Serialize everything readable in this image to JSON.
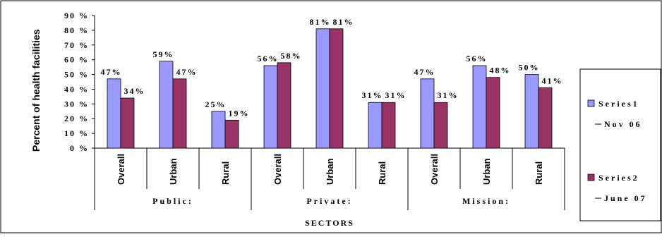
{
  "chart_data": {
    "type": "bar",
    "title": "",
    "ylabel": "Percent of health facilities",
    "xlabel": "SECTORS",
    "ylim": [
      0,
      90
    ],
    "yticks": [
      "0 %",
      "10 %",
      "20 %",
      "30 %",
      "40 %",
      "50 %",
      "60 %",
      "70 %",
      "80 %",
      "90 %"
    ],
    "categories": [
      "Overall",
      "Urban",
      "Rural",
      "Overall",
      "Urban",
      "Rural",
      "Overall",
      "Urban",
      "Rural"
    ],
    "groups": [
      "Public:",
      "Private:",
      "Mission:"
    ],
    "series": [
      {
        "name": "Series1",
        "subtitle": "Nov 06",
        "color": "#9999ff",
        "values": [
          47,
          59,
          25,
          56,
          81,
          31,
          47,
          56,
          50
        ],
        "labels": [
          "47%",
          "59%",
          "25%",
          "56%",
          "81%",
          "31%",
          "47%",
          "56%",
          "50%"
        ]
      },
      {
        "name": "Series2",
        "subtitle": "June 07",
        "color": "#993366",
        "values": [
          34,
          47,
          19,
          58,
          81,
          31,
          31,
          48,
          41
        ],
        "labels": [
          "34%",
          "47%",
          "19%",
          "58%",
          "81%",
          "31%",
          "31%",
          "48%",
          "41%"
        ]
      }
    ],
    "grid": false,
    "legend_position": "right"
  }
}
